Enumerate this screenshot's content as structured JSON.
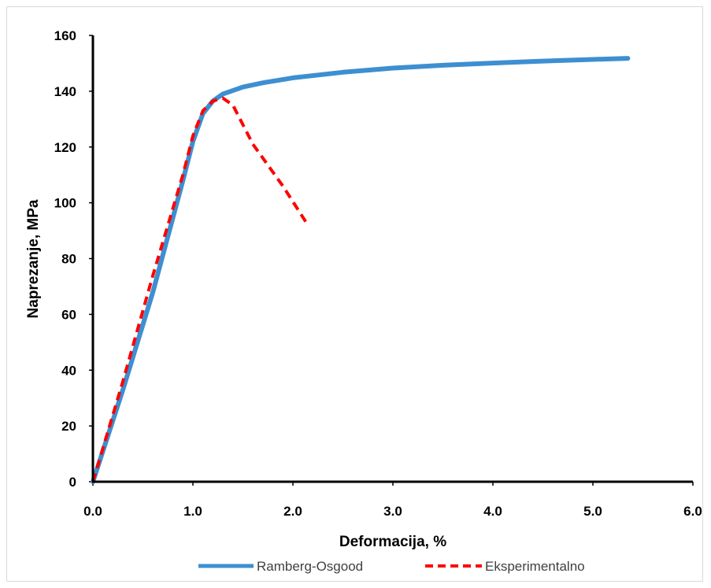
{
  "chart_data": {
    "type": "line",
    "xlabel": "Deformacija, %",
    "ylabel": "Naprezanje, MPa",
    "xlim": [
      0.0,
      6.0
    ],
    "ylim": [
      0,
      160
    ],
    "x_ticks": [
      "0.0",
      "1.0",
      "2.0",
      "3.0",
      "4.0",
      "5.0",
      "6.0"
    ],
    "y_ticks": [
      "0",
      "20",
      "40",
      "60",
      "80",
      "100",
      "120",
      "140",
      "160"
    ],
    "legend_position": "bottom",
    "grid": false,
    "series": [
      {
        "name": "Ramberg-Osgood",
        "color": "#3d8fd1",
        "style": "solid",
        "x": [
          0.0,
          0.3,
          0.6,
          0.9,
          1.0,
          1.1,
          1.2,
          1.3,
          1.5,
          1.7,
          2.0,
          2.5,
          3.0,
          3.5,
          4.0,
          4.5,
          5.0,
          5.35
        ],
        "y": [
          0,
          33,
          68,
          108,
          122,
          132,
          136.5,
          139,
          141.5,
          143,
          144.8,
          146.8,
          148.3,
          149.3,
          150.1,
          150.8,
          151.4,
          151.8
        ]
      },
      {
        "name": "Eksperimentalno",
        "color": "#ff0000",
        "style": "dashed",
        "x": [
          0.0,
          0.3,
          0.6,
          0.9,
          1.0,
          1.1,
          1.2,
          1.3,
          1.4,
          1.6,
          1.9,
          2.15
        ],
        "y": [
          0,
          36,
          74,
          110,
          124,
          133,
          136.5,
          137.5,
          135,
          121,
          106,
          92
        ]
      }
    ]
  }
}
